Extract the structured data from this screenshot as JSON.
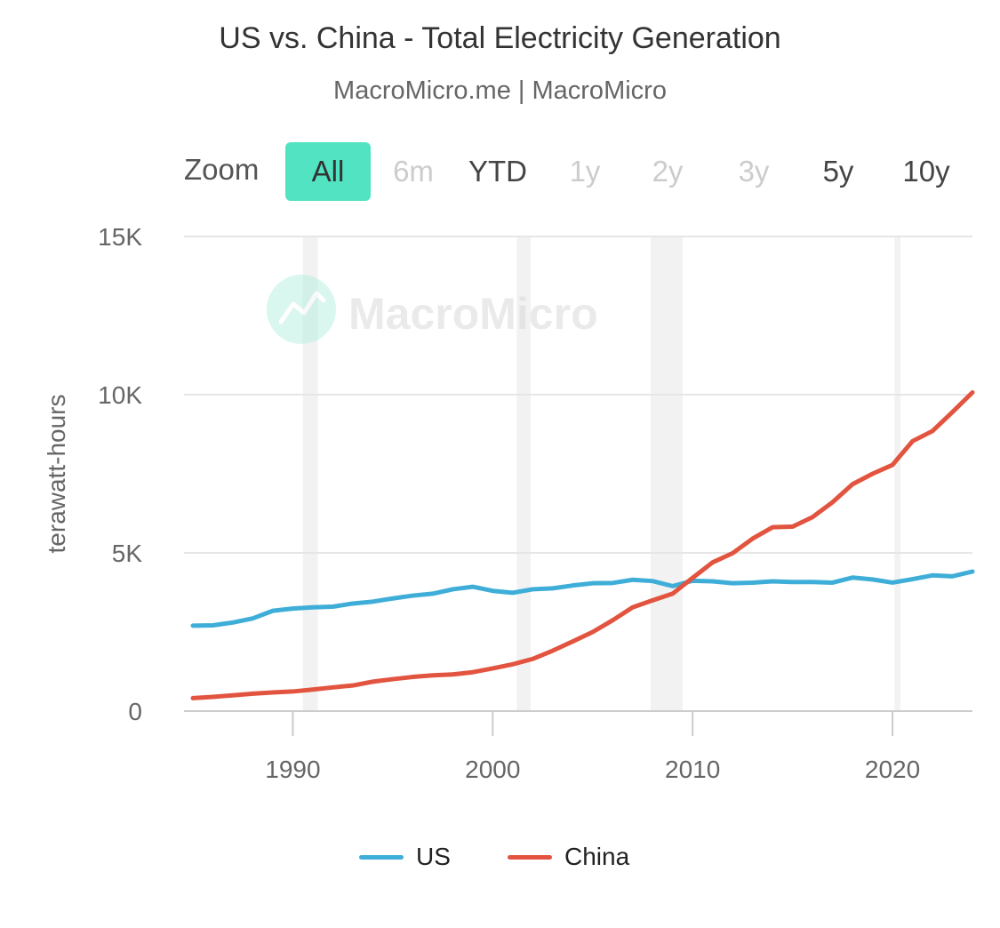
{
  "header": {
    "title": "US vs. China - Total Electricity Generation",
    "subtitle": "MacroMicro.me | MacroMicro"
  },
  "zoom": {
    "label": "Zoom",
    "buttons": [
      {
        "label": "All",
        "state": "active"
      },
      {
        "label": "6m",
        "state": "disabled"
      },
      {
        "label": "YTD",
        "state": "enabled"
      },
      {
        "label": "1y",
        "state": "disabled"
      },
      {
        "label": "2y",
        "state": "disabled"
      },
      {
        "label": "3y",
        "state": "disabled"
      },
      {
        "label": "5y",
        "state": "enabled"
      },
      {
        "label": "10y",
        "state": "enabled"
      }
    ]
  },
  "watermark": {
    "text": "MacroMicro",
    "icon": "macromicro-logo-icon"
  },
  "colors": {
    "us": "#3eaed8",
    "china": "#e2543f",
    "accent": "#52e3c2",
    "recession": "#f2f2f2",
    "grid": "#e6e6e6"
  },
  "chart_data": {
    "type": "line",
    "title": "US vs. China - Total Electricity Generation",
    "subtitle": "MacroMicro.me | MacroMicro",
    "xlabel": "",
    "ylabel": "terawatt-hours",
    "xlim": [
      1985,
      2024
    ],
    "ylim": [
      0,
      15000
    ],
    "x_ticks": [
      1990,
      2000,
      2010,
      2020
    ],
    "x_tick_labels": [
      "1990",
      "2000",
      "2010",
      "2020"
    ],
    "y_ticks": [
      0,
      5000,
      10000,
      15000
    ],
    "y_tick_labels": [
      "0",
      "5K",
      "10K",
      "15K"
    ],
    "grid": true,
    "legend_position": "bottom-center",
    "shaded_periods": [
      [
        1990.5,
        1991.25
      ],
      [
        2001.2,
        2001.9
      ],
      [
        2007.9,
        2009.5
      ],
      [
        2020.1,
        2020.4
      ]
    ],
    "x": [
      1985,
      1986,
      1987,
      1988,
      1989,
      1990,
      1991,
      1992,
      1993,
      1994,
      1995,
      1996,
      1997,
      1998,
      1999,
      2000,
      2001,
      2002,
      2003,
      2004,
      2005,
      2006,
      2007,
      2008,
      2009,
      2010,
      2011,
      2012,
      2013,
      2014,
      2015,
      2016,
      2017,
      2018,
      2019,
      2020,
      2021,
      2022,
      2023,
      2024
    ],
    "series": [
      {
        "name": "US",
        "color": "#3eaed8",
        "values": [
          2700,
          2710,
          2800,
          2930,
          3170,
          3240,
          3280,
          3300,
          3400,
          3460,
          3560,
          3650,
          3710,
          3850,
          3930,
          3800,
          3740,
          3850,
          3880,
          3970,
          4040,
          4050,
          4150,
          4110,
          3950,
          4120,
          4100,
          4040,
          4060,
          4100,
          4080,
          4080,
          4060,
          4220,
          4160,
          4060,
          4170,
          4290,
          4260,
          4410
        ]
      },
      {
        "name": "China",
        "color": "#e2543f",
        "values": [
          410,
          450,
          500,
          550,
          590,
          620,
          680,
          750,
          810,
          930,
          1010,
          1080,
          1130,
          1160,
          1230,
          1350,
          1480,
          1650,
          1910,
          2200,
          2500,
          2870,
          3280,
          3500,
          3710,
          4210,
          4700,
          4990,
          5450,
          5810,
          5830,
          6130,
          6600,
          7170,
          7500,
          7780,
          8530,
          8850,
          9450,
          10070
        ]
      }
    ]
  },
  "legend": {
    "items": [
      {
        "label": "US"
      },
      {
        "label": "China"
      }
    ]
  }
}
